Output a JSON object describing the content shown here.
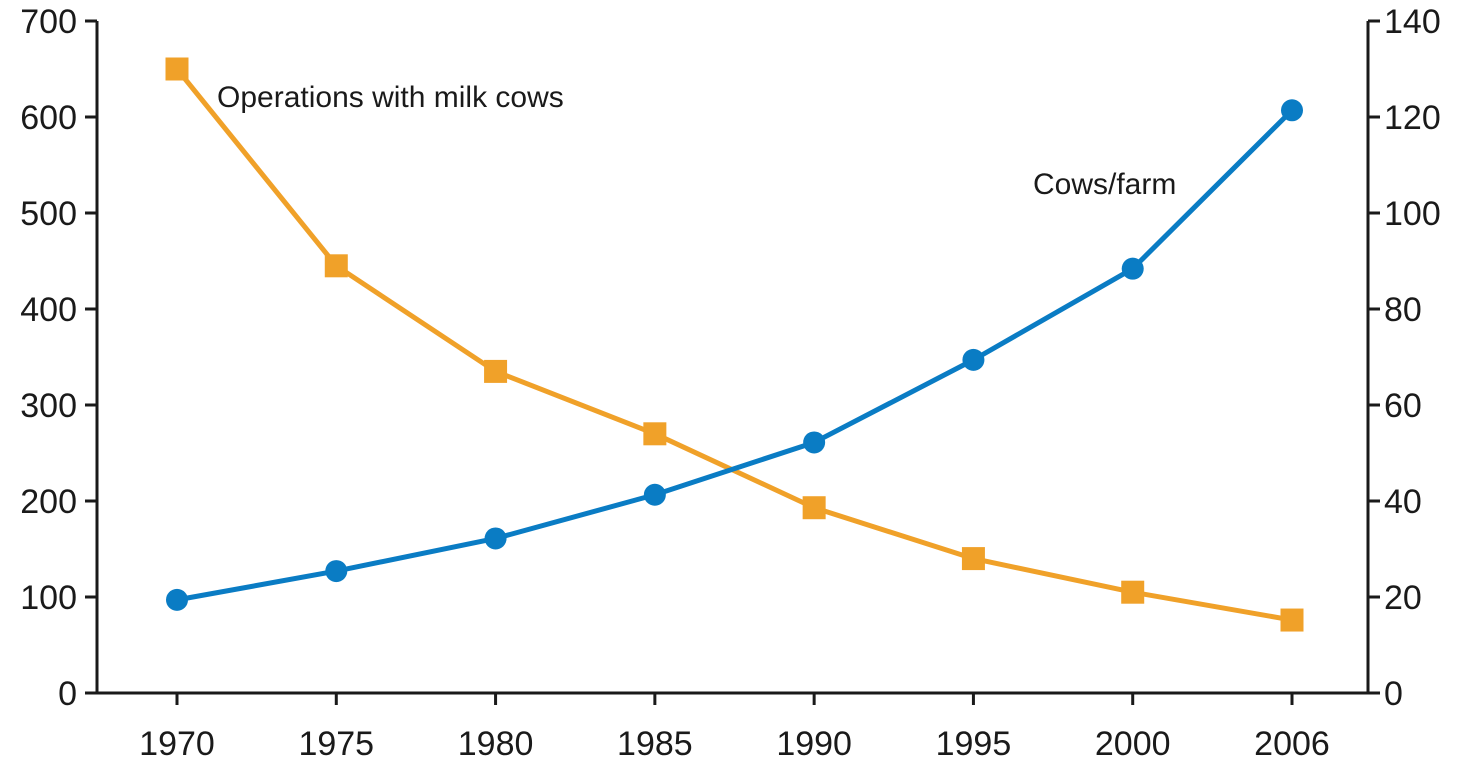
{
  "chart_data": {
    "type": "line",
    "title": "",
    "xlabel": "",
    "ylabel_left": "",
    "ylabel_right": "",
    "categories": [
      "1970",
      "1975",
      "1980",
      "1985",
      "1990",
      "1995",
      "2000",
      "2006"
    ],
    "ylim_left": [
      0,
      700
    ],
    "ylim_right": [
      0,
      140
    ],
    "yticks_left": [
      "0",
      "100",
      "200",
      "300",
      "400",
      "500",
      "600",
      "700"
    ],
    "yticks_right": [
      "0",
      "20",
      "40",
      "60",
      "80",
      "100",
      "120",
      "140"
    ],
    "grid": false,
    "legend": "none",
    "series": [
      {
        "name": "Operations with milk cows",
        "axis": "left",
        "marker": "square",
        "color": "#f0a129",
        "values": [
          650,
          445,
          335,
          270,
          193,
          140,
          105,
          76
        ]
      },
      {
        "name": "Cows/farm",
        "axis": "right",
        "marker": "circle",
        "color": "#0a7cc4",
        "values": [
          19.4,
          25.4,
          32.2,
          41.3,
          52.2,
          69.4,
          88.4,
          121.4
        ]
      }
    ]
  }
}
